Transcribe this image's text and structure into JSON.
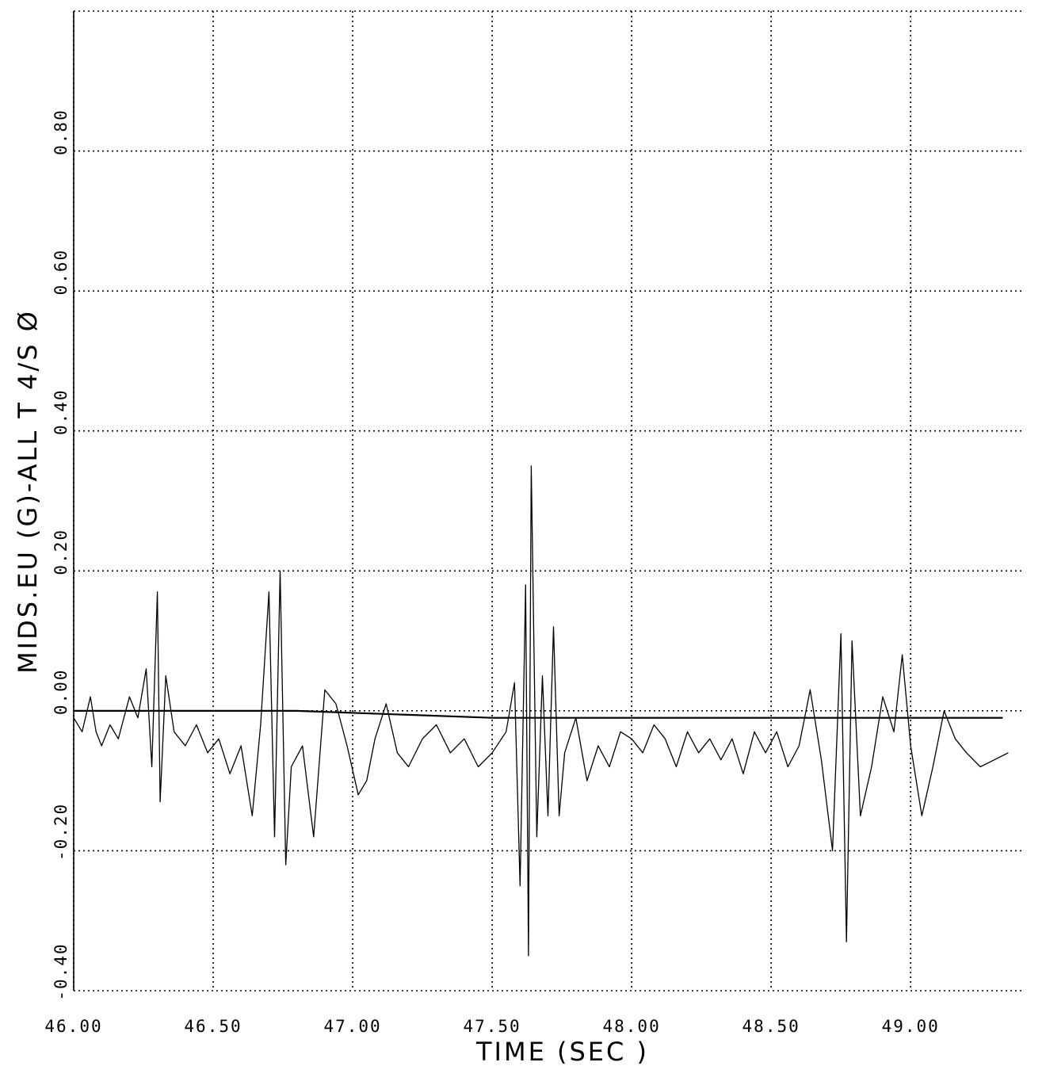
{
  "chart_data": {
    "type": "line",
    "title": "",
    "xlabel": "TIME (SEC )",
    "ylabel": "MIDS.EU (G)-ALL T 4/S Ø",
    "xlim": [
      46.0,
      49.4
    ],
    "ylim": [
      -0.4,
      1.0
    ],
    "x_ticks": [
      46.0,
      46.5,
      47.0,
      47.5,
      48.0,
      48.5,
      49.0
    ],
    "x_tick_labels": [
      "46.00",
      "46.50",
      "47.00",
      "47.50",
      "48.00",
      "48.50",
      "49.00"
    ],
    "y_ticks": [
      -0.4,
      -0.2,
      0.0,
      0.2,
      0.4,
      0.6,
      0.8
    ],
    "y_tick_labels": [
      "-0.40",
      "-0.20",
      "0.00",
      "0.20",
      "0.40",
      "0.60",
      "0.80"
    ],
    "grid": true,
    "series": [
      {
        "values_xy": [
          [
            46.0,
            -0.01
          ],
          [
            46.03,
            -0.03
          ],
          [
            46.06,
            0.02
          ],
          [
            46.08,
            -0.03
          ],
          [
            46.1,
            -0.05
          ],
          [
            46.13,
            -0.02
          ],
          [
            46.16,
            -0.04
          ],
          [
            46.2,
            0.02
          ],
          [
            46.23,
            -0.01
          ],
          [
            46.26,
            0.06
          ],
          [
            46.28,
            -0.08
          ],
          [
            46.3,
            0.17
          ],
          [
            46.31,
            -0.13
          ],
          [
            46.33,
            0.05
          ],
          [
            46.36,
            -0.03
          ],
          [
            46.4,
            -0.05
          ],
          [
            46.44,
            -0.02
          ],
          [
            46.48,
            -0.06
          ],
          [
            46.52,
            -0.04
          ],
          [
            46.56,
            -0.09
          ],
          [
            46.6,
            -0.05
          ],
          [
            46.64,
            -0.15
          ],
          [
            46.67,
            -0.02
          ],
          [
            46.7,
            0.17
          ],
          [
            46.72,
            -0.18
          ],
          [
            46.74,
            0.2
          ],
          [
            46.76,
            -0.22
          ],
          [
            46.78,
            -0.08
          ],
          [
            46.82,
            -0.05
          ],
          [
            46.86,
            -0.18
          ],
          [
            46.9,
            0.03
          ],
          [
            46.94,
            0.01
          ],
          [
            46.98,
            -0.05
          ],
          [
            47.02,
            -0.12
          ],
          [
            47.05,
            -0.1
          ],
          [
            47.08,
            -0.04
          ],
          [
            47.12,
            0.01
          ],
          [
            47.16,
            -0.06
          ],
          [
            47.2,
            -0.08
          ],
          [
            47.25,
            -0.04
          ],
          [
            47.3,
            -0.02
          ],
          [
            47.35,
            -0.06
          ],
          [
            47.4,
            -0.04
          ],
          [
            47.45,
            -0.08
          ],
          [
            47.5,
            -0.06
          ],
          [
            47.55,
            -0.03
          ],
          [
            47.58,
            0.04
          ],
          [
            47.6,
            -0.25
          ],
          [
            47.62,
            0.18
          ],
          [
            47.63,
            -0.35
          ],
          [
            47.64,
            0.35
          ],
          [
            47.66,
            -0.18
          ],
          [
            47.68,
            0.05
          ],
          [
            47.7,
            -0.15
          ],
          [
            47.72,
            0.12
          ],
          [
            47.74,
            -0.15
          ],
          [
            47.76,
            -0.06
          ],
          [
            47.8,
            -0.01
          ],
          [
            47.84,
            -0.1
          ],
          [
            47.88,
            -0.05
          ],
          [
            47.92,
            -0.08
          ],
          [
            47.96,
            -0.03
          ],
          [
            48.0,
            -0.04
          ],
          [
            48.04,
            -0.06
          ],
          [
            48.08,
            -0.02
          ],
          [
            48.12,
            -0.04
          ],
          [
            48.16,
            -0.08
          ],
          [
            48.2,
            -0.03
          ],
          [
            48.24,
            -0.06
          ],
          [
            48.28,
            -0.04
          ],
          [
            48.32,
            -0.07
          ],
          [
            48.36,
            -0.04
          ],
          [
            48.4,
            -0.09
          ],
          [
            48.44,
            -0.03
          ],
          [
            48.48,
            -0.06
          ],
          [
            48.52,
            -0.03
          ],
          [
            48.56,
            -0.08
          ],
          [
            48.6,
            -0.05
          ],
          [
            48.64,
            0.03
          ],
          [
            48.68,
            -0.07
          ],
          [
            48.72,
            -0.2
          ],
          [
            48.75,
            0.11
          ],
          [
            48.77,
            -0.33
          ],
          [
            48.79,
            0.1
          ],
          [
            48.82,
            -0.15
          ],
          [
            48.86,
            -0.08
          ],
          [
            48.9,
            0.02
          ],
          [
            48.94,
            -0.03
          ],
          [
            48.97,
            0.08
          ],
          [
            49.0,
            -0.05
          ],
          [
            49.04,
            -0.15
          ],
          [
            49.08,
            -0.08
          ],
          [
            49.12,
            0.0
          ],
          [
            49.16,
            -0.04
          ],
          [
            49.2,
            -0.06
          ],
          [
            49.25,
            -0.08
          ],
          [
            49.3,
            -0.07
          ],
          [
            49.35,
            -0.06
          ]
        ]
      },
      {
        "values_xy": [
          [
            46.0,
            0.0
          ],
          [
            46.8,
            0.0
          ],
          [
            47.5,
            -0.01
          ],
          [
            48.5,
            -0.01
          ],
          [
            49.0,
            -0.01
          ],
          [
            49.33,
            -0.01
          ]
        ]
      }
    ]
  }
}
